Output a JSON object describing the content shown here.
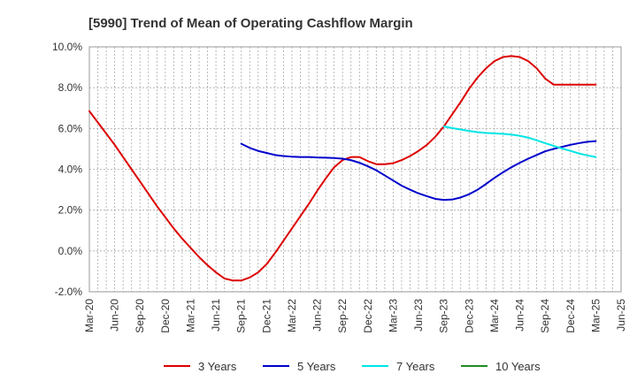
{
  "chart_data": {
    "type": "line",
    "title": "[5990]  Trend of Mean of Operating Cashflow Margin",
    "xlabel": "",
    "ylabel": "",
    "ylim": [
      -2.0,
      10.0
    ],
    "yticks": [
      -2.0,
      0.0,
      2.0,
      4.0,
      6.0,
      8.0,
      10.0
    ],
    "ytick_labels": [
      "-2.0%",
      "0.0%",
      "2.0%",
      "4.0%",
      "6.0%",
      "8.0%",
      "10.0%"
    ],
    "x_ticks": [
      "Mar-20",
      "Jun-20",
      "Sep-20",
      "Dec-20",
      "Mar-21",
      "Jun-21",
      "Sep-21",
      "Dec-21",
      "Mar-22",
      "Jun-22",
      "Sep-22",
      "Dec-22",
      "Mar-23",
      "Jun-23",
      "Sep-23",
      "Dec-23",
      "Mar-24",
      "Jun-24",
      "Sep-24",
      "Dec-24",
      "Mar-25",
      "Jun-25"
    ],
    "grid": true,
    "legend_position": "bottom",
    "series": [
      {
        "name": "3 Years",
        "color": "#dd0000",
        "x": [
          "Mar-20",
          "Apr-20",
          "May-20",
          "Jun-20",
          "Jul-20",
          "Aug-20",
          "Sep-20",
          "Oct-20",
          "Nov-20",
          "Dec-20",
          "Jan-21",
          "Feb-21",
          "Mar-21",
          "Apr-21",
          "May-21",
          "Jun-21",
          "Jul-21",
          "Aug-21",
          "Sep-21",
          "Oct-21",
          "Nov-21",
          "Dec-21",
          "Jan-22",
          "Feb-22",
          "Mar-22",
          "Apr-22",
          "May-22",
          "Jun-22",
          "Jul-22",
          "Aug-22",
          "Sep-22",
          "Oct-22",
          "Nov-22",
          "Dec-22",
          "Jan-23",
          "Feb-23",
          "Mar-23",
          "Apr-23",
          "May-23",
          "Jun-23",
          "Jul-23",
          "Aug-23",
          "Sep-23",
          "Oct-23",
          "Nov-23",
          "Dec-23",
          "Jan-24",
          "Feb-24",
          "Mar-24",
          "Apr-24",
          "May-24",
          "Jun-24",
          "Jul-24",
          "Aug-24",
          "Sep-24",
          "Oct-24",
          "Nov-24",
          "Dec-24",
          "Jan-25",
          "Feb-25",
          "Mar-25"
        ],
        "values": [
          6.85,
          6.3,
          5.75,
          5.2,
          4.6,
          4.0,
          3.4,
          2.8,
          2.2,
          1.65,
          1.1,
          0.6,
          0.15,
          -0.3,
          -0.7,
          -1.05,
          -1.35,
          -1.45,
          -1.45,
          -1.3,
          -1.05,
          -0.65,
          -0.1,
          0.5,
          1.1,
          1.7,
          2.3,
          2.95,
          3.55,
          4.1,
          4.45,
          4.6,
          4.6,
          4.4,
          4.25,
          4.25,
          4.3,
          4.45,
          4.65,
          4.9,
          5.2,
          5.6,
          6.1,
          6.7,
          7.3,
          7.95,
          8.5,
          8.95,
          9.3,
          9.5,
          9.55,
          9.5,
          9.3,
          8.95,
          8.45,
          8.15,
          8.15,
          8.15,
          8.15,
          8.15,
          8.15
        ]
      },
      {
        "name": "5 Years",
        "color": "#0000cc",
        "x": [
          "Sep-21",
          "Oct-21",
          "Nov-21",
          "Dec-21",
          "Jan-22",
          "Feb-22",
          "Mar-22",
          "Apr-22",
          "May-22",
          "Jun-22",
          "Jul-22",
          "Aug-22",
          "Sep-22",
          "Oct-22",
          "Nov-22",
          "Dec-22",
          "Jan-23",
          "Feb-23",
          "Mar-23",
          "Apr-23",
          "May-23",
          "Jun-23",
          "Jul-23",
          "Aug-23",
          "Sep-23",
          "Oct-23",
          "Nov-23",
          "Dec-23",
          "Jan-24",
          "Feb-24",
          "Mar-24",
          "Apr-24",
          "May-24",
          "Jun-24",
          "Jul-24",
          "Aug-24",
          "Sep-24",
          "Oct-24",
          "Nov-24",
          "Dec-24",
          "Jan-25",
          "Feb-25",
          "Mar-25"
        ],
        "values": [
          5.25,
          5.05,
          4.9,
          4.8,
          4.7,
          4.65,
          4.62,
          4.6,
          4.6,
          4.58,
          4.57,
          4.55,
          4.52,
          4.45,
          4.32,
          4.15,
          3.95,
          3.7,
          3.45,
          3.2,
          3.0,
          2.82,
          2.68,
          2.55,
          2.5,
          2.52,
          2.62,
          2.78,
          3.0,
          3.28,
          3.58,
          3.85,
          4.1,
          4.32,
          4.52,
          4.7,
          4.88,
          5.0,
          5.1,
          5.2,
          5.28,
          5.35,
          5.38
        ]
      },
      {
        "name": "7 Years",
        "color": "#00e5e5",
        "x": [
          "Sep-23",
          "Oct-23",
          "Nov-23",
          "Dec-23",
          "Jan-24",
          "Feb-24",
          "Mar-24",
          "Apr-24",
          "May-24",
          "Jun-24",
          "Jul-24",
          "Aug-24",
          "Sep-24",
          "Oct-24",
          "Nov-24",
          "Dec-24",
          "Jan-25",
          "Feb-25",
          "Mar-25"
        ],
        "values": [
          6.1,
          6.02,
          5.95,
          5.88,
          5.82,
          5.78,
          5.76,
          5.74,
          5.7,
          5.64,
          5.55,
          5.42,
          5.28,
          5.15,
          5.02,
          4.9,
          4.78,
          4.68,
          4.6
        ]
      },
      {
        "name": "10 Years",
        "color": "#228b22",
        "x": [],
        "values": []
      }
    ]
  }
}
